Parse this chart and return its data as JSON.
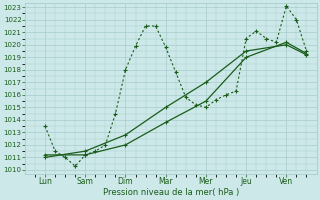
{
  "xlabel": "Pression niveau de la mer( hPa )",
  "bg_color": "#cce8e8",
  "grid_color": "#a8cccc",
  "line_color": "#1a5c1a",
  "ylim": [
    1010,
    1023
  ],
  "yticks": [
    1010,
    1011,
    1012,
    1013,
    1014,
    1015,
    1016,
    1017,
    1018,
    1019,
    1020,
    1021,
    1022,
    1023
  ],
  "days": [
    "Lun",
    "Sam",
    "Dim",
    "Mar",
    "Mer",
    "Jeu",
    "Ven"
  ],
  "day_positions": [
    1,
    3,
    5,
    7,
    9,
    11,
    13
  ],
  "xlim": [
    0.0,
    14.5
  ],
  "series1_x": [
    1.0,
    1.5,
    2.0,
    2.5,
    3.0,
    3.5,
    4.0,
    4.5,
    5.0,
    5.5,
    6.0,
    6.5,
    7.0,
    7.5,
    8.0,
    8.5,
    9.0,
    9.5,
    10.0,
    10.5,
    11.0,
    11.5,
    12.0,
    12.5,
    13.0,
    13.5,
    14.0
  ],
  "series1_y": [
    1013.5,
    1011.5,
    1011.0,
    1010.3,
    1011.2,
    1011.5,
    1012.0,
    1014.5,
    1018.0,
    1019.9,
    1021.5,
    1021.5,
    1019.8,
    1017.8,
    1015.8,
    1015.2,
    1015.0,
    1015.6,
    1016.0,
    1016.3,
    1020.5,
    1021.1,
    1020.5,
    1020.2,
    1023.1,
    1022.0,
    1019.5
  ],
  "series2_x": [
    1.0,
    3.0,
    5.0,
    7.0,
    9.0,
    11.0,
    13.0,
    14.0
  ],
  "series2_y": [
    1011.2,
    1011.2,
    1012.0,
    1013.8,
    1015.5,
    1019.0,
    1020.2,
    1019.3
  ],
  "series3_x": [
    1.0,
    3.0,
    5.0,
    7.0,
    9.0,
    11.0,
    13.0,
    14.0
  ],
  "series3_y": [
    1011.0,
    1011.5,
    1012.8,
    1015.0,
    1017.0,
    1019.5,
    1020.0,
    1019.2
  ]
}
